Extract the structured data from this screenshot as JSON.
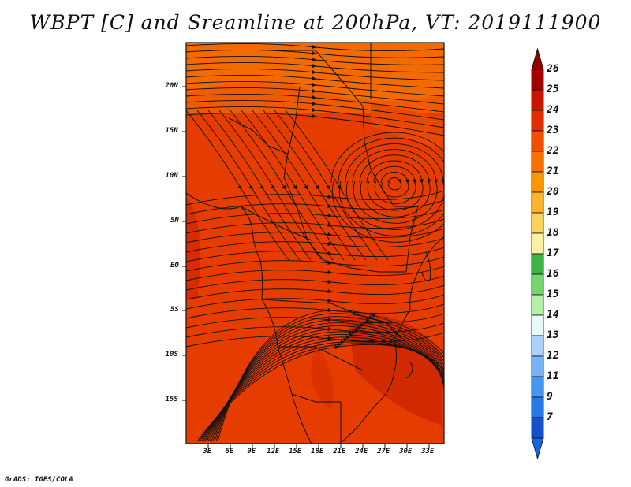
{
  "title": "WBPT [C] and Sreamline at 200hPa, VT: 2019111900",
  "credit": "GrADS: IGES/COLA",
  "map": {
    "lat_ticks": [
      "20N",
      "15N",
      "10N",
      "5N",
      "EQ",
      "5S",
      "10S",
      "15S"
    ],
    "lon_ticks": [
      "3E",
      "6E",
      "9E",
      "12E",
      "15E",
      "18E",
      "21E",
      "24E",
      "27E",
      "30E",
      "33E"
    ],
    "lon_range": [
      0,
      35
    ],
    "lat_range": [
      -20,
      25
    ]
  },
  "colorbar": {
    "labels": [
      "26",
      "25",
      "24",
      "23",
      "22",
      "21",
      "20",
      "19",
      "18",
      "17",
      "16",
      "15",
      "14",
      "13",
      "12",
      "11",
      "9",
      "7"
    ],
    "colors": [
      "#a50000",
      "#c81400",
      "#e12d00",
      "#f05000",
      "#f77000",
      "#fa9600",
      "#fbb42d",
      "#fbd25a",
      "#fdf0a0",
      "#3cb446",
      "#78d26e",
      "#b4f0aa",
      "#e6fafa",
      "#aad2fa",
      "#78b4f5",
      "#4696f0",
      "#2878e6",
      "#1450c8"
    ],
    "top_arrow_color": "#8c0000",
    "bottom_arrow_color": "#1464e6"
  }
}
